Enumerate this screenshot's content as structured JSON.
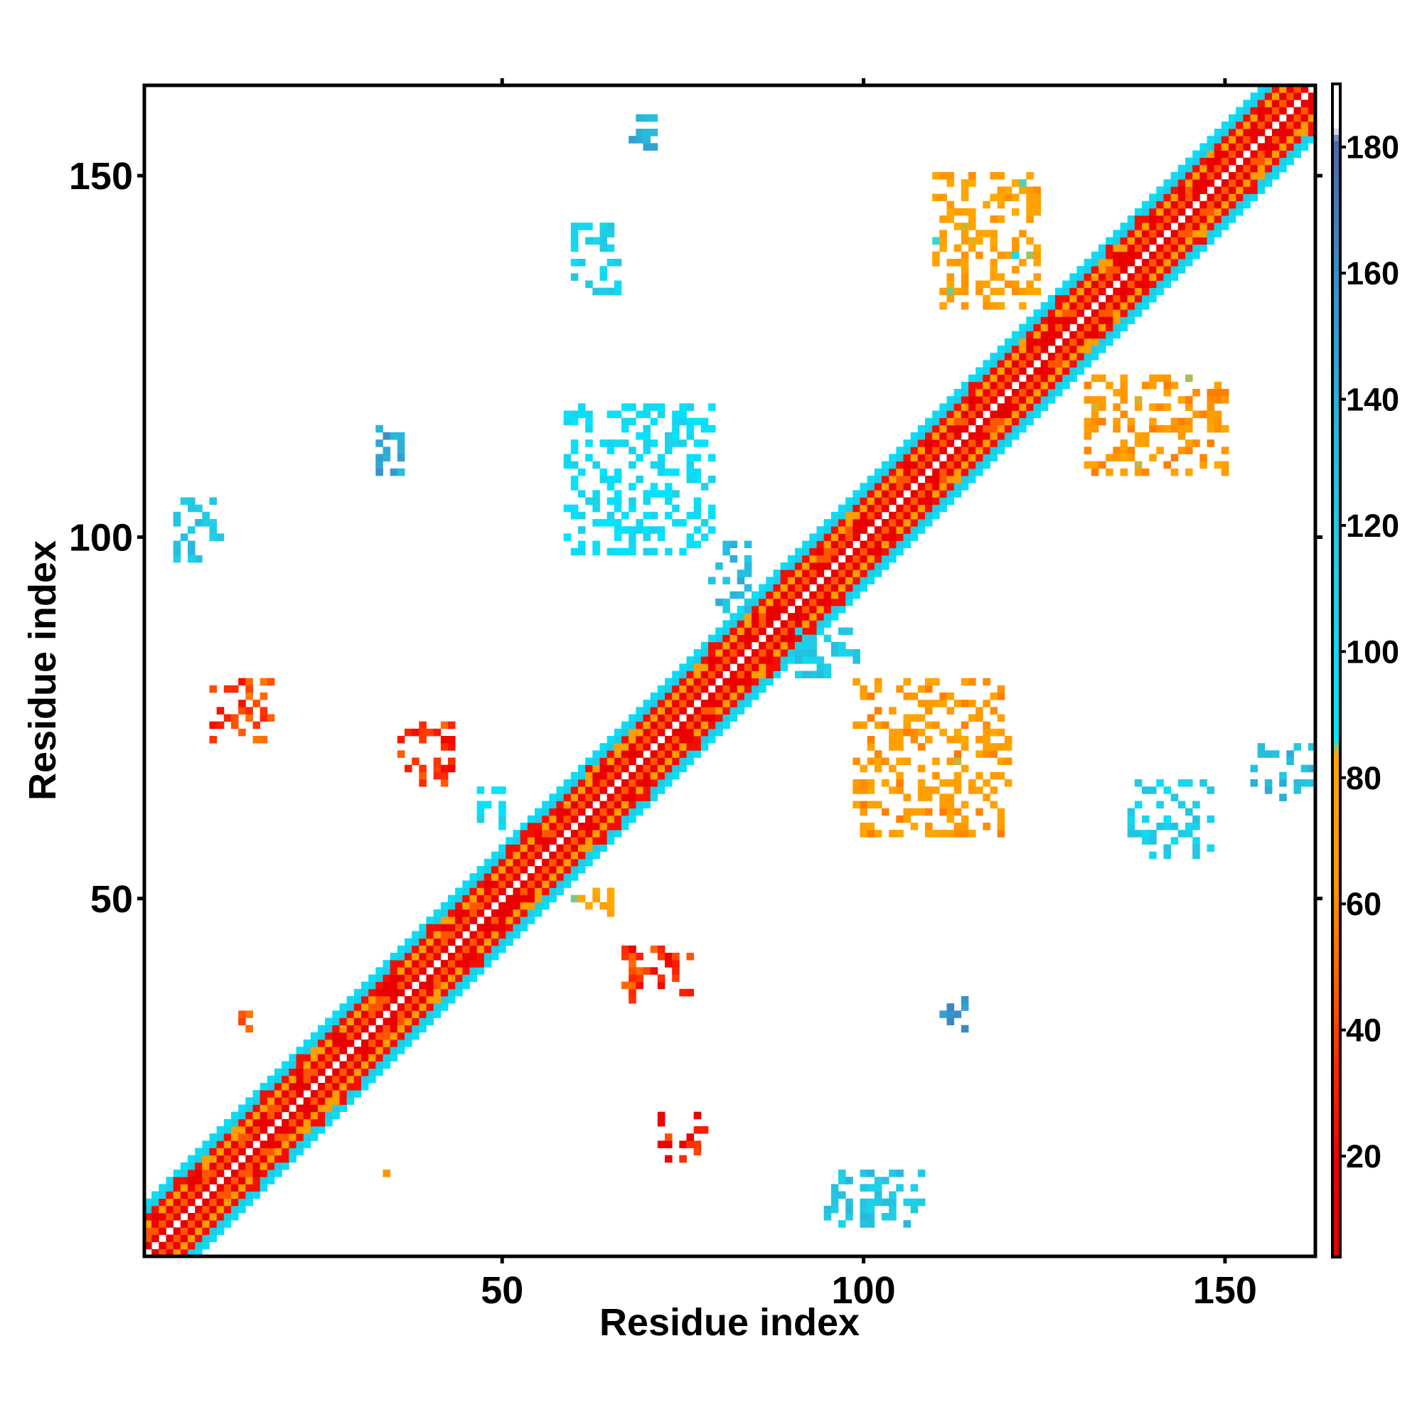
{
  "chart_data": {
    "type": "heatmap",
    "title": "",
    "xlabel": "Residue index",
    "ylabel": "Residue index",
    "xlim": [
      1,
      162
    ],
    "ylim": [
      1,
      162
    ],
    "x_ticks": [
      50,
      100,
      150
    ],
    "y_ticks": [
      50,
      100,
      150
    ],
    "colorbar": {
      "range": [
        4,
        190
      ],
      "ticks": [
        20,
        40,
        60,
        80,
        100,
        120,
        140,
        160,
        180
      ],
      "stops": [
        {
          "value": 4,
          "color": "#e60000"
        },
        {
          "value": 20,
          "color": "#f00000"
        },
        {
          "value": 35,
          "color": "#ff2a00"
        },
        {
          "value": 50,
          "color": "#ff6a00"
        },
        {
          "value": 65,
          "color": "#ff9a00"
        },
        {
          "value": 84,
          "color": "#ffa800"
        },
        {
          "value": 86,
          "color": "#00e5ff"
        },
        {
          "value": 110,
          "color": "#1fd0e6"
        },
        {
          "value": 135,
          "color": "#29b8dc"
        },
        {
          "value": 160,
          "color": "#3a8ec8"
        },
        {
          "value": 181,
          "color": "#4a6aa8"
        },
        {
          "value": 183,
          "color": "#ffffff"
        },
        {
          "value": 190,
          "color": "#ffffff"
        }
      ]
    },
    "band": {
      "half_width": 7,
      "profile": [
        {
          "d": 0,
          "value": 190
        },
        {
          "d": 1,
          "value": 8
        },
        {
          "d": 2,
          "value": 45
        },
        {
          "d": 3,
          "value": 12
        },
        {
          "d": 4,
          "value": 70
        },
        {
          "d": 5,
          "value": 25
        },
        {
          "d": 6,
          "value": 115
        },
        {
          "d": 7,
          "value": 95
        }
      ]
    },
    "contact_clusters": [
      {
        "x": [
          60,
          66
        ],
        "y": [
          134,
          143
        ],
        "value": 110
      },
      {
        "x": [
          68,
          71
        ],
        "y": [
          154,
          158
        ],
        "value": 140
      },
      {
        "x": [
          59,
          79
        ],
        "y": [
          98,
          118
        ],
        "value": 95
      },
      {
        "x": [
          79,
          84
        ],
        "y": [
          90,
          99
        ],
        "value": 130
      },
      {
        "x": [
          110,
          124
        ],
        "y": [
          132,
          150
        ],
        "value": 75
      },
      {
        "x": [
          131,
          150
        ],
        "y": [
          109,
          122
        ],
        "value": 70
      },
      {
        "x": [
          91,
          99
        ],
        "y": [
          81,
          87
        ],
        "value": 115
      },
      {
        "x": [
          99,
          120
        ],
        "y": [
          59,
          80
        ],
        "value": 70
      },
      {
        "x": [
          5,
          11
        ],
        "y": [
          97,
          106
        ],
        "value": 120
      },
      {
        "x": [
          33,
          36
        ],
        "y": [
          109,
          115
        ],
        "value": 145
      },
      {
        "x": [
          10,
          18
        ],
        "y": [
          72,
          80
        ],
        "value": 40
      },
      {
        "x": [
          36,
          43
        ],
        "y": [
          66,
          74
        ],
        "value": 35
      },
      {
        "x": [
          47,
          50
        ],
        "y": [
          60,
          66
        ],
        "value": 95
      },
      {
        "x": [
          60,
          65
        ],
        "y": [
          48,
          51
        ],
        "value": 85
      },
      {
        "x": [
          67,
          76
        ],
        "y": [
          36,
          43
        ],
        "value": 35
      },
      {
        "x": [
          14,
          15
        ],
        "y": [
          32,
          34
        ],
        "value": 55
      },
      {
        "x": [
          71,
          78
        ],
        "y": [
          14,
          20
        ],
        "value": 30
      },
      {
        "x": [
          34,
          35
        ],
        "y": [
          12,
          13
        ],
        "value": 55
      },
      {
        "x": [
          95,
          108
        ],
        "y": [
          5,
          12
        ],
        "value": 120
      },
      {
        "x": [
          110,
          114
        ],
        "y": [
          32,
          36
        ],
        "value": 150
      },
      {
        "x": [
          137,
          148
        ],
        "y": [
          56,
          66
        ],
        "value": 110
      },
      {
        "x": [
          154,
          162
        ],
        "y": [
          64,
          71
        ],
        "value": 130
      }
    ]
  }
}
